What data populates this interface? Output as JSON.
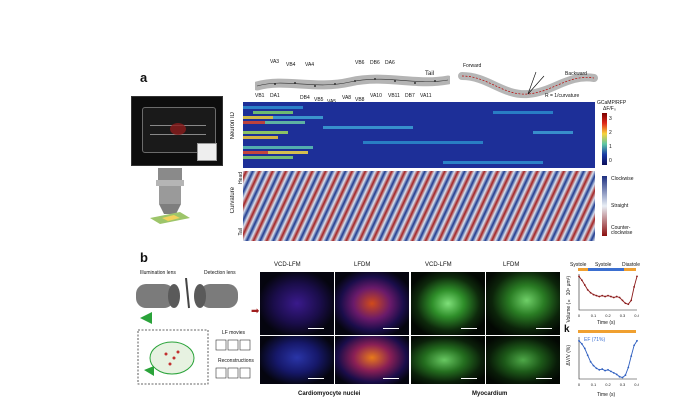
{
  "panel_a": {
    "letter": "a",
    "neuron_names_top": [
      "VA3",
      "VB4",
      "VA4",
      "VB6",
      "DB6",
      "DA6",
      "Tail"
    ],
    "neuron_names_bottom": [
      "VB1",
      "DA1",
      "DB4",
      "VB5",
      "VA5",
      "VA8",
      "VB8",
      "VA10",
      "VB11",
      "DB7",
      "VA11"
    ],
    "worm_labels": {
      "forward": "Forward",
      "backward": "Backward",
      "radius": "R = 1/curvature"
    },
    "neuron_id_label": "Neuron ID",
    "colorbar_title_1": "GCaMP/RFP",
    "colorbar_title_2": "ΔF/F₀",
    "colorbar_ticks": [
      "3",
      "2",
      "1",
      "0"
    ],
    "curvature_label": "Curvature",
    "head_label": "Head",
    "tail_label": "Tail",
    "curv_legend": [
      "Clockwise",
      "Straight",
      "Counter-clockwise"
    ]
  },
  "panel_b": {
    "letter": "b",
    "illumination_label": "Illumination lens",
    "detection_label": "Detection lens",
    "lf_movies_label": "LF movies",
    "reconstructions_label": "Reconstructions",
    "col_titles": [
      "VCD-LFM",
      "LFDM",
      "VCD-LFM",
      "LFDM"
    ],
    "caption_left": "Cardiomyocyte nuclei",
    "caption_right": "Myocardium"
  },
  "panel_j": {
    "phase_labels": [
      "Systole",
      "Systole",
      "Diastole"
    ],
    "ylabel": "Volume (× 10⁶ μm³)",
    "xlabel": "Time (s)",
    "xticks": [
      "0",
      "0.1",
      "0.2",
      "0.3",
      "0.4"
    ]
  },
  "panel_k": {
    "letter": "k",
    "legend": "EF (71%)",
    "ylabel": "ΔV/V (%)",
    "xlabel": "Time (s)",
    "xticks": [
      "0",
      "0.1",
      "0.2",
      "0.3",
      "0.4"
    ]
  },
  "chart_data": [
    {
      "type": "line",
      "title": "",
      "xlabel": "Time (s)",
      "ylabel": "Volume (× 10⁶ μm³)",
      "x": [
        0,
        0.02,
        0.04,
        0.06,
        0.08,
        0.1,
        0.12,
        0.14,
        0.16,
        0.18,
        0.2,
        0.22,
        0.24,
        0.26,
        0.28,
        0.3,
        0.32,
        0.34,
        0.36,
        0.38,
        0.4
      ],
      "values": [
        1.0,
        0.92,
        0.82,
        0.72,
        0.66,
        0.62,
        0.6,
        0.58,
        0.6,
        0.58,
        0.6,
        0.58,
        0.56,
        0.58,
        0.56,
        0.5,
        0.44,
        0.42,
        0.5,
        0.78,
        1.0
      ],
      "xlim": [
        0,
        0.4
      ],
      "ylim": [
        0.3,
        1.05
      ]
    },
    {
      "type": "line",
      "title": "",
      "xlabel": "Time (s)",
      "ylabel": "ΔV/V (%)",
      "x": [
        0,
        0.02,
        0.04,
        0.06,
        0.08,
        0.1,
        0.12,
        0.14,
        0.16,
        0.18,
        0.2,
        0.22,
        0.24,
        0.26,
        0.28,
        0.3,
        0.32,
        0.34,
        0.36,
        0.38,
        0.4
      ],
      "values": [
        100,
        92,
        80,
        62,
        45,
        35,
        28,
        24,
        26,
        22,
        24,
        20,
        16,
        12,
        6,
        4,
        10,
        30,
        60,
        88,
        100
      ],
      "xlim": [
        0,
        0.4
      ],
      "ylim": [
        0,
        110
      ],
      "series": [
        {
          "name": "EF (71%)"
        }
      ]
    }
  ]
}
